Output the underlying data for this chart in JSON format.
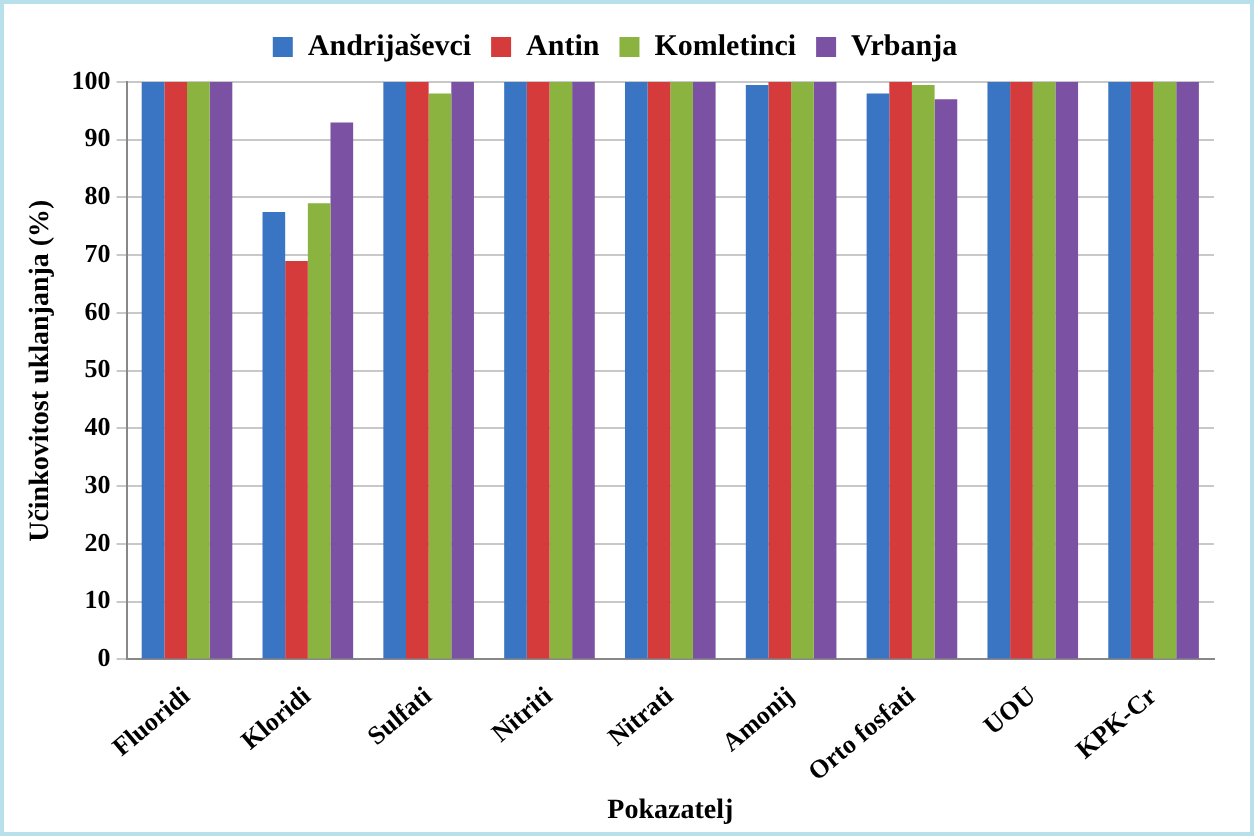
{
  "chart_data": {
    "type": "bar",
    "xlabel": "Pokazatelj",
    "ylabel": "Učinkovitost uklanjanja (%)",
    "categories": [
      "Fluoridi",
      "Kloridi",
      "Sulfati",
      "Nitriti",
      "Nitrati",
      "Amonij",
      "Orto fosfati",
      "UOU",
      "KPK-Cr"
    ],
    "series": [
      {
        "name": "Andrijaševci",
        "color": "#3a75c4",
        "values": [
          100,
          77.5,
          100,
          100,
          100,
          99.5,
          98,
          100,
          100
        ]
      },
      {
        "name": "Antin",
        "color": "#d63b3b",
        "values": [
          100,
          69,
          100,
          100,
          100,
          100,
          100,
          100,
          100
        ]
      },
      {
        "name": "Komletinci",
        "color": "#8ab33f",
        "values": [
          100,
          79,
          98,
          100,
          100,
          100,
          99.5,
          100,
          100
        ]
      },
      {
        "name": "Vrbanja",
        "color": "#7b52a3",
        "values": [
          100,
          93,
          100,
          100,
          100,
          100,
          97,
          100,
          100
        ]
      }
    ],
    "ylim": [
      0,
      100
    ],
    "yticks": [
      0,
      10,
      20,
      30,
      40,
      50,
      60,
      70,
      80,
      90,
      100
    ],
    "grid": "y",
    "legend": "top"
  }
}
